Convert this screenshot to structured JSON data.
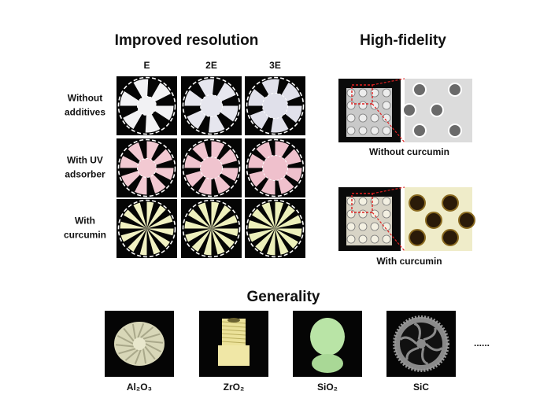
{
  "figure": {
    "resolution": {
      "title": "Improved resolution",
      "columns": [
        "E",
        "2E",
        "3E"
      ],
      "rows": [
        [
          "Without",
          "additives"
        ],
        [
          "With UV",
          "adsorber"
        ],
        [
          "With",
          "curcumin"
        ]
      ]
    },
    "fidelity": {
      "title": "High-fidelity",
      "panels": [
        "Without curcumin",
        "With curcumin"
      ]
    },
    "generality": {
      "title": "Generality",
      "materials": [
        "Al₂O₃",
        "ZrO₂",
        "SiO₂",
        "SiC"
      ],
      "more": "......"
    }
  }
}
